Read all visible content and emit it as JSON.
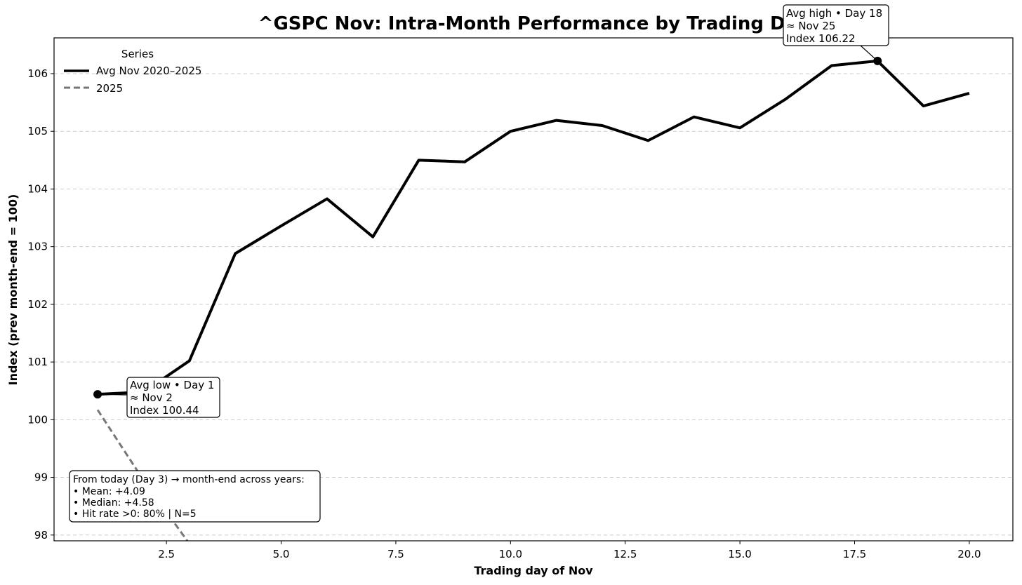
{
  "chart_data": {
    "type": "line",
    "title": "^GSPC Nov: Intra-Month Performance by Trading Day",
    "xlabel": "Trading day of Nov",
    "ylabel": "Index (prev month-end = 100)",
    "xlim": [
      0.05,
      20.95
    ],
    "ylim": [
      97.9,
      106.62
    ],
    "x_ticks": [
      2.5,
      5.0,
      7.5,
      10.0,
      12.5,
      15.0,
      17.5,
      20.0
    ],
    "x_tick_labels": [
      "2.5",
      "5.0",
      "7.5",
      "10.0",
      "12.5",
      "15.0",
      "17.5",
      "20.0"
    ],
    "y_ticks": [
      98,
      99,
      100,
      101,
      102,
      103,
      104,
      105,
      106
    ],
    "y_tick_labels": [
      "98",
      "99",
      "100",
      "101",
      "102",
      "103",
      "104",
      "105",
      "106"
    ],
    "grid": "horizontal dashed",
    "legend": {
      "title": "Series",
      "placement": "top-left"
    },
    "series": [
      {
        "name": "Avg Nov 2020–2025",
        "style": "solid",
        "color": "#000000",
        "x": [
          1,
          2,
          3,
          4,
          5,
          6,
          7,
          8,
          9,
          10,
          11,
          12,
          13,
          14,
          15,
          16,
          17,
          18,
          19,
          20
        ],
        "y": [
          100.44,
          100.48,
          101.02,
          102.88,
          103.36,
          103.83,
          103.17,
          104.5,
          104.47,
          105.0,
          105.19,
          105.1,
          104.84,
          105.25,
          105.06,
          105.56,
          106.14,
          106.22,
          105.44,
          105.66
        ]
      },
      {
        "name": "2025",
        "style": "dashed",
        "color": "#777777",
        "x": [
          1,
          2,
          3
        ],
        "y": [
          100.17,
          98.95,
          97.85
        ]
      }
    ],
    "annotations": [
      {
        "id": "avg-low",
        "x": 1,
        "y": 100.44,
        "lines": [
          "Avg low • Day 1",
          "≈ Nov 2",
          "Index 100.44"
        ]
      },
      {
        "id": "avg-high",
        "x": 18,
        "y": 106.22,
        "lines": [
          "Avg high • Day 18",
          "≈ Nov 25",
          "Index 106.22"
        ]
      }
    ],
    "stats_box": {
      "lines": [
        "From today (Day 3) → month-end across years:",
        "• Mean: +4.09",
        "• Median: +4.58",
        "• Hit rate >0: 80%  | N=5"
      ]
    }
  }
}
